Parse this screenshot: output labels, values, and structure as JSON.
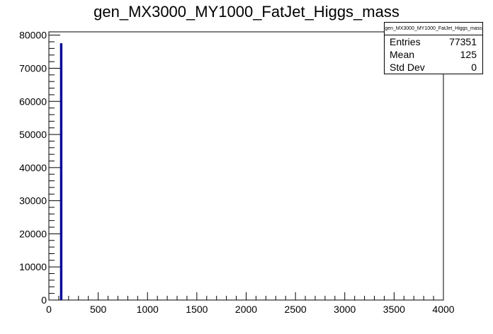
{
  "chart_data": {
    "type": "bar",
    "title": "gen_MX3000_MY1000_FatJet_Higgs_mass",
    "xlabel": "",
    "ylabel": "",
    "xlim": [
      0,
      4000
    ],
    "ylim": [
      0,
      81000
    ],
    "x_major_ticks": [
      0,
      500,
      1000,
      1500,
      2000,
      2500,
      3000,
      3500,
      4000
    ],
    "x_tick_labels": [
      "0",
      "500",
      "1000",
      "1500",
      "2000",
      "2500",
      "3000",
      "3500",
      "4000"
    ],
    "y_major_ticks": [
      0,
      10000,
      20000,
      30000,
      40000,
      50000,
      60000,
      70000,
      80000
    ],
    "y_tick_labels": [
      "0",
      "10000",
      "20000",
      "30000",
      "40000",
      "50000",
      "60000",
      "70000",
      "80000"
    ],
    "series": [
      {
        "bins": [
          {
            "x_low": 120,
            "x_high": 130,
            "value": 77351
          }
        ],
        "color": "#000099"
      }
    ],
    "grid": false,
    "stats_box": {
      "title": "gen_MX3000_MY1000_FatJet_Higgs_mass",
      "entries_label": "Entries",
      "entries_value": "77351",
      "mean_label": "Mean",
      "mean_value": "125",
      "stddev_label": "Std Dev",
      "stddev_value": "0",
      "placement": "top-right"
    }
  }
}
